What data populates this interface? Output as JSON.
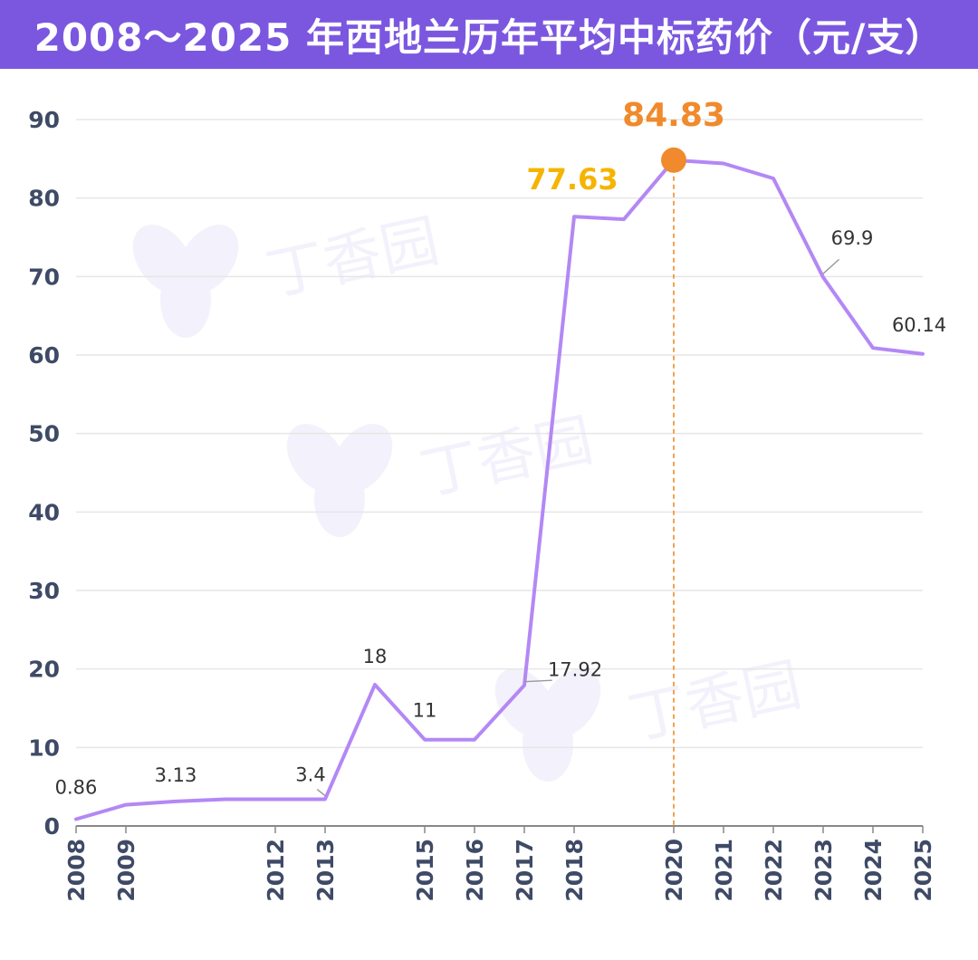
{
  "title": "2008～2025 年西地兰历年平均中标药价（元/支）",
  "watermark": "丁香园",
  "colors": {
    "title_bg": "#7b57e0",
    "line": "#b388f5",
    "peak": "#f08a2c",
    "highlight": "#f5b400",
    "axis_text": "#3e4a66",
    "label_text": "#333333",
    "grid": "#e6e6e6"
  },
  "chart_data": {
    "type": "line",
    "title": "2008～2025 年西地兰历年平均中标药价（元/支）",
    "xlabel": "",
    "ylabel": "",
    "ylim": [
      0,
      90
    ],
    "yticks": [
      0,
      10,
      20,
      30,
      40,
      50,
      60,
      70,
      80,
      90
    ],
    "xlim": [
      2008,
      2025
    ],
    "xtick_labels": [
      "2008",
      "2009",
      "2012",
      "2013",
      "2015",
      "2016",
      "2017",
      "2018",
      "2020",
      "2021",
      "2022",
      "2023",
      "2024",
      "2025"
    ],
    "grid": true,
    "series": [
      {
        "x": [
          2008,
          2009,
          2010,
          2011,
          2012,
          2013,
          2014,
          2015,
          2016,
          2017,
          2018,
          2019,
          2020,
          2021,
          2022,
          2023,
          2024,
          2025
        ],
        "values": [
          0.86,
          2.7,
          3.13,
          3.4,
          3.4,
          3.4,
          18,
          11,
          11,
          17.92,
          77.63,
          77.3,
          84.83,
          84.4,
          82.5,
          69.9,
          60.9,
          60.14
        ]
      }
    ],
    "data_labels": [
      {
        "x": 2008,
        "y": 0.86,
        "text": "0.86"
      },
      {
        "x": 2010,
        "y": 3.13,
        "text": "3.13"
      },
      {
        "x": 2013,
        "y": 3.4,
        "text": "3.4"
      },
      {
        "x": 2014,
        "y": 18,
        "text": "18"
      },
      {
        "x": 2015,
        "y": 11,
        "text": "11"
      },
      {
        "x": 2017,
        "y": 17.92,
        "text": "17.92"
      },
      {
        "x": 2018,
        "y": 77.63,
        "text": "77.63"
      },
      {
        "x": 2020,
        "y": 84.83,
        "text": "84.83"
      },
      {
        "x": 2023,
        "y": 69.9,
        "text": "69.9"
      },
      {
        "x": 2025,
        "y": 60.14,
        "text": "60.14"
      }
    ],
    "peak": {
      "x": 2020,
      "y": 84.83
    }
  }
}
